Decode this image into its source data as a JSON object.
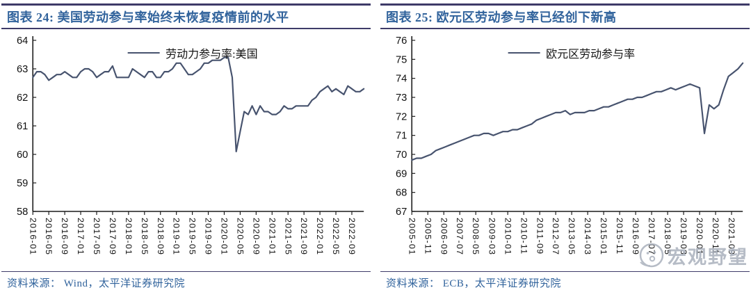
{
  "colors": {
    "title_blue": "#31639c",
    "rule_navy": "#3e3b68",
    "axis_black": "#1a1a1a",
    "us_line": "#47536e",
    "ez_line": "#47536e",
    "watermark_gray": "#aab1bd"
  },
  "panels": [
    {
      "source": "资料来源： Wind，太平洋证券研究院"
    },
    {
      "source": "资料来源： ECB，太平洋证券研究院"
    }
  ],
  "watermark": {
    "text": "宏观野望",
    "icon": "face-logo-icon"
  },
  "chart_data": [
    {
      "type": "line",
      "title": "图表 24: 美国劳动参与率始终未恢复疫情前的水平",
      "legend": "劳动力参与率:美国",
      "line_color": "#47536e",
      "x_start": "2016-01",
      "x_step_months": 1,
      "xtick_labels": [
        "2016-01",
        "2016-05",
        "2016-09",
        "2017-01",
        "2017-05",
        "2017-09",
        "2018-01",
        "2018-05",
        "2018-09",
        "2019-01",
        "2019-05",
        "2019-09",
        "2020-01",
        "2020-05",
        "2020-09",
        "2021-01",
        "2021-05",
        "2021-09",
        "2022-01",
        "2022-05",
        "2022-09"
      ],
      "values": [
        62.7,
        62.9,
        62.9,
        62.8,
        62.6,
        62.7,
        62.8,
        62.8,
        62.9,
        62.8,
        62.7,
        62.7,
        62.9,
        63.0,
        63.0,
        62.9,
        62.7,
        62.8,
        62.9,
        62.9,
        63.1,
        62.7,
        62.7,
        62.7,
        62.7,
        63.0,
        62.9,
        62.8,
        62.7,
        62.9,
        62.9,
        62.7,
        62.7,
        62.9,
        62.9,
        63.0,
        63.2,
        63.2,
        63.0,
        62.8,
        62.8,
        62.9,
        63.0,
        63.2,
        63.2,
        63.3,
        63.3,
        63.3,
        63.4,
        63.4,
        62.7,
        60.1,
        60.8,
        61.5,
        61.4,
        61.7,
        61.4,
        61.7,
        61.5,
        61.5,
        61.4,
        61.4,
        61.5,
        61.7,
        61.6,
        61.6,
        61.7,
        61.7,
        61.7,
        61.7,
        61.9,
        62.0,
        62.2,
        62.3,
        62.4,
        62.2,
        62.3,
        62.2,
        62.1,
        62.4,
        62.3,
        62.2,
        62.2,
        62.3
      ],
      "ylim": [
        58,
        64
      ],
      "yticks": [
        58,
        59,
        60,
        61,
        62,
        63,
        64
      ],
      "xlabel": "",
      "ylabel": "",
      "grid": false,
      "legend_position": "top-center"
    },
    {
      "type": "line",
      "title": "图表 25: 欧元区劳动参与率已经创下新高",
      "legend": "欧元区劳动参与率",
      "line_color": "#47536e",
      "x_start": "2005-01",
      "x_step_months": 3,
      "xtick_labels": [
        "2005-01",
        "2005-11",
        "2006-09",
        "2007-07",
        "2008-05",
        "2009-03",
        "2010-01",
        "2010-11",
        "2011-09",
        "2012-07",
        "2013-05",
        "2014-03",
        "2015-01",
        "2015-11",
        "2016-09",
        "2017-07",
        "2018-05",
        "2019-03",
        "2020-01",
        "2020-11",
        "2021-09"
      ],
      "values": [
        69.7,
        69.8,
        69.8,
        69.9,
        70.0,
        70.2,
        70.3,
        70.4,
        70.5,
        70.6,
        70.7,
        70.8,
        70.9,
        71.0,
        71.0,
        71.1,
        71.1,
        71.0,
        71.1,
        71.2,
        71.2,
        71.3,
        71.3,
        71.4,
        71.5,
        71.6,
        71.8,
        71.9,
        72.0,
        72.1,
        72.2,
        72.2,
        72.3,
        72.1,
        72.2,
        72.2,
        72.2,
        72.3,
        72.3,
        72.4,
        72.5,
        72.5,
        72.6,
        72.7,
        72.8,
        72.9,
        72.9,
        73.0,
        73.0,
        73.1,
        73.2,
        73.3,
        73.3,
        73.4,
        73.5,
        73.4,
        73.5,
        73.6,
        73.7,
        73.6,
        73.5,
        71.1,
        72.6,
        72.4,
        72.6,
        73.4,
        74.1,
        74.3,
        74.5,
        74.8
      ],
      "ylim": [
        67,
        76
      ],
      "yticks": [
        67,
        68,
        69,
        70,
        71,
        72,
        73,
        74,
        75,
        76
      ],
      "xlabel": "",
      "ylabel": "",
      "grid": false,
      "legend_position": "top-center"
    }
  ]
}
